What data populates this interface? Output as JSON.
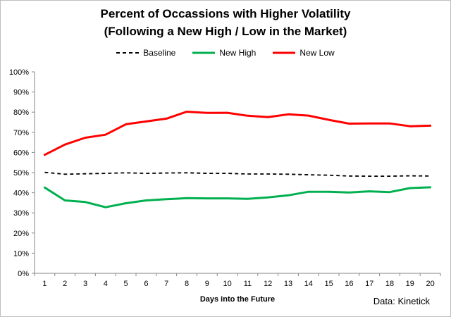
{
  "chart_data": {
    "type": "line",
    "title": "Percent of Occassions with Higher Volatility",
    "subtitle": "(Following a New High / Low in the Market)",
    "xlabel": "Days into the Future",
    "ylabel": "",
    "source_note": "Data: Kinetick",
    "x": [
      1,
      2,
      3,
      4,
      5,
      6,
      7,
      8,
      9,
      10,
      11,
      12,
      13,
      14,
      15,
      16,
      17,
      18,
      19,
      20
    ],
    "ylim": [
      0,
      100
    ],
    "yticks": [
      0,
      10,
      20,
      30,
      40,
      50,
      60,
      70,
      80,
      90,
      100
    ],
    "ytick_labels": [
      "0%",
      "10%",
      "20%",
      "30%",
      "40%",
      "50%",
      "60%",
      "70%",
      "80%",
      "90%",
      "100%"
    ],
    "grid": false,
    "legend_position": "top-center",
    "series": [
      {
        "name": "Baseline",
        "color": "#000000",
        "style": "dashed",
        "values": [
          50.1,
          49.2,
          49.4,
          49.6,
          49.9,
          49.6,
          49.8,
          49.9,
          49.6,
          49.6,
          49.3,
          49.3,
          49.2,
          48.9,
          48.7,
          48.3,
          48.2,
          48.2,
          48.4,
          48.3
        ]
      },
      {
        "name": "New High",
        "color": "#00b050",
        "style": "solid",
        "values": [
          42.6,
          36.2,
          35.4,
          32.8,
          34.8,
          36.2,
          36.8,
          37.3,
          37.2,
          37.2,
          37.0,
          37.7,
          38.7,
          40.5,
          40.5,
          40.1,
          40.7,
          40.3,
          42.3,
          42.7
        ]
      },
      {
        "name": "New Low",
        "color": "#ff0000",
        "style": "solid",
        "values": [
          58.8,
          63.9,
          67.3,
          68.8,
          74.0,
          75.4,
          76.8,
          80.2,
          79.6,
          79.7,
          78.2,
          77.5,
          78.9,
          78.3,
          76.2,
          74.3,
          74.4,
          74.4,
          73.0,
          73.3
        ]
      }
    ]
  }
}
